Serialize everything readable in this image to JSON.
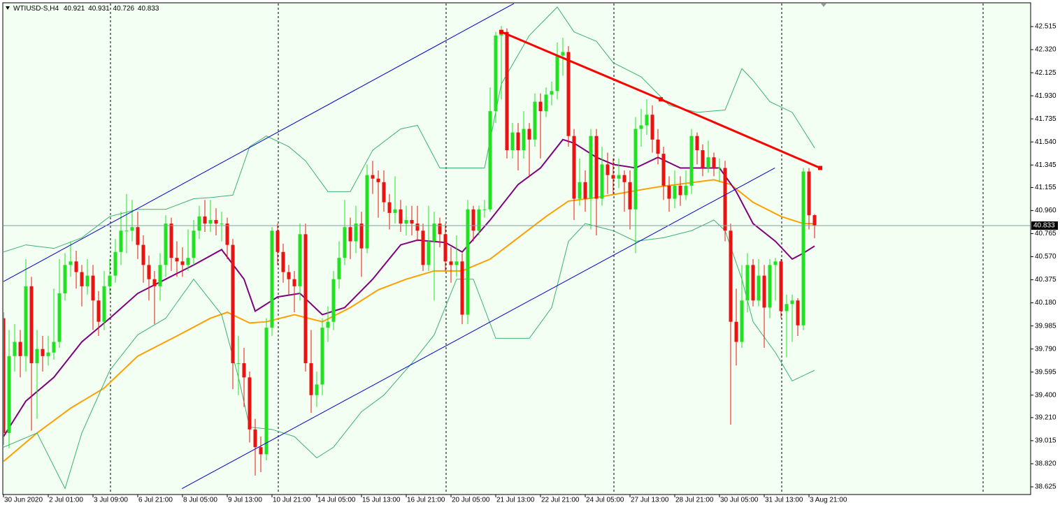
{
  "chart_data": {
    "type": "candlestick",
    "title": "WTIUSD-S,H4",
    "up_color": "#22e022",
    "down_color": "#ee1111",
    "categories": [
      "30 Jun 2020",
      null,
      null,
      null,
      null,
      null,
      null,
      null,
      "2 Jul 01:00",
      null,
      null,
      null,
      null,
      null,
      null,
      null,
      "3 Jul 09:00",
      null,
      null,
      null,
      null,
      null,
      null,
      null,
      "6 Jul 21:00",
      null,
      null,
      null,
      null,
      null,
      null,
      null,
      "8 Jul 05:00",
      null,
      null,
      null,
      null,
      null,
      null,
      null,
      "9 Jul 13:00",
      null,
      null,
      null,
      null,
      null,
      null,
      null,
      "10 Jul 21:00",
      null,
      null,
      null,
      null,
      null,
      null,
      null,
      "14 Jul 05:00",
      null,
      null,
      null,
      null,
      null,
      null,
      null,
      "15 Jul 13:00",
      null,
      null,
      null,
      null,
      null,
      null,
      null,
      "16 Jul 21:00",
      null,
      null,
      null,
      null,
      null,
      null,
      null,
      "20 Jul 05:00",
      null,
      null,
      null,
      null,
      null,
      null,
      null,
      "21 Jul 13:00",
      null,
      null,
      null,
      null,
      null,
      null,
      null,
      "22 Jul 21:00",
      null,
      null,
      null,
      null,
      null,
      null,
      null,
      "24 Jul 05:00",
      null,
      null,
      null,
      null,
      null,
      null,
      null,
      "27 Jul 13:00",
      null,
      null,
      null,
      null,
      null,
      null,
      null,
      "28 Jul 21:00",
      null,
      null,
      null,
      null,
      null,
      null,
      null,
      "30 Jul 05:00",
      null,
      null,
      null,
      null,
      null,
      null,
      null,
      "31 Jul 13:00",
      null,
      null,
      null,
      null,
      null,
      null,
      null,
      "3 Aug 21:00",
      null
    ],
    "open": [
      40.05,
      39.08,
      39.73,
      39.85,
      39.73,
      40.32,
      39.67,
      39.79,
      39.73,
      39.76,
      39.85,
      40.26,
      40.5,
      40.53,
      40.44,
      40.32,
      40.41,
      40.2,
      40.02,
      40.32,
      40.41,
      40.61,
      40.79,
      40.79,
      40.82,
      40.67,
      40.5,
      40.38,
      40.32,
      40.5,
      40.85,
      40.56,
      40.53,
      40.5,
      40.56,
      40.79,
      40.91,
      40.85,
      40.88,
      40.85,
      40.85,
      40.67,
      39.67,
      39.67,
      39.55,
      39.11,
      38.96,
      38.9,
      39.97,
      40.79,
      40.61,
      40.44,
      40.38,
      40.32,
      40.76,
      39.67,
      39.4,
      39.49,
      39.97,
      40.02,
      40.38,
      40.56,
      40.82,
      40.7,
      40.85,
      40.64,
      41.26,
      41.23,
      41.2,
      41.03,
      40.94,
      40.97,
      40.85,
      40.88,
      40.85,
      40.79,
      40.5,
      40.7,
      40.85,
      40.76,
      40.53,
      40.5,
      40.53,
      40.08,
      40.97,
      40.79,
      40.97,
      40.97,
      41.8,
      42.44,
      42.47,
      41.47,
      41.62,
      41.47,
      41.65,
      41.56,
      41.88,
      41.8,
      41.94,
      41.97,
      42.27,
      42.3,
      41.59,
      41.06,
      41.2,
      41.06,
      41.59,
      41.06,
      41.35,
      41.26,
      41.23,
      41.26,
      41.2,
      40.97,
      41.65,
      41.68,
      41.77,
      41.56,
      41.44,
      41.17,
      41.06,
      41.17,
      41.09,
      41.17,
      41.59,
      41.47,
      41.32,
      41.41,
      41.32,
      41.32,
      40.79,
      40.02,
      39.85,
      40.2,
      40.5,
      40.2,
      40.41,
      40.14,
      40.5,
      40.53,
      40.11,
      40.17,
      40.2,
      39.99,
      41.29,
      40.921
    ],
    "high": [
      40.1,
      39.95,
      40.0,
      39.95,
      40.55,
      40.4,
      39.95,
      39.9,
      39.9,
      40.3,
      40.55,
      40.6,
      40.7,
      40.62,
      40.5,
      40.55,
      40.5,
      40.28,
      40.45,
      40.55,
      40.72,
      40.95,
      41.1,
      41.05,
      40.95,
      40.75,
      40.58,
      40.45,
      40.6,
      40.92,
      40.9,
      40.7,
      40.65,
      40.8,
      40.88,
      41.0,
      41.05,
      41.05,
      40.98,
      40.95,
      40.9,
      40.72,
      39.9,
      39.8,
      39.6,
      39.2,
      39.05,
      40.05,
      40.82,
      40.85,
      40.68,
      40.5,
      40.45,
      40.85,
      40.85,
      39.95,
      39.6,
      40.05,
      40.15,
      40.45,
      40.7,
      41.05,
      40.9,
      41.0,
      40.95,
      41.35,
      41.38,
      41.3,
      41.3,
      41.1,
      41.25,
      41.05,
      41.0,
      41.0,
      41.0,
      40.85,
      41.0,
      40.95,
      40.9,
      40.85,
      40.65,
      40.75,
      40.6,
      41.05,
      41.0,
      41.0,
      41.05,
      42.0,
      42.47,
      42.52,
      42.5,
      41.7,
      41.7,
      41.8,
      41.7,
      41.95,
      41.95,
      42.0,
      42.05,
      42.38,
      42.42,
      42.35,
      41.65,
      41.4,
      41.3,
      41.65,
      41.65,
      41.5,
      41.45,
      41.4,
      41.4,
      41.3,
      41.3,
      41.75,
      41.82,
      41.9,
      41.85,
      41.65,
      41.5,
      41.25,
      41.3,
      41.25,
      41.3,
      41.65,
      41.62,
      41.52,
      41.55,
      41.45,
      41.4,
      41.38,
      40.85,
      40.3,
      40.5,
      40.6,
      40.55,
      40.55,
      40.5,
      40.55,
      40.56,
      40.55,
      40.25,
      40.25,
      40.22,
      41.32,
      41.32,
      40.931
    ],
    "low": [
      38.98,
      38.95,
      39.6,
      39.55,
      39.6,
      39.1,
      39.2,
      39.6,
      39.65,
      39.7,
      39.8,
      40.2,
      40.4,
      40.3,
      40.15,
      40.25,
      39.95,
      39.9,
      39.95,
      40.25,
      40.35,
      40.5,
      40.6,
      40.7,
      40.55,
      40.35,
      40.2,
      40.0,
      40.2,
      40.4,
      40.45,
      40.4,
      40.4,
      40.45,
      40.5,
      40.72,
      40.78,
      40.78,
      40.75,
      40.7,
      40.55,
      39.45,
      39.4,
      39.3,
      39.0,
      38.72,
      38.75,
      38.85,
      39.9,
      40.5,
      40.35,
      40.25,
      40.1,
      40.2,
      39.6,
      39.25,
      39.3,
      39.4,
      39.85,
      39.95,
      40.3,
      40.5,
      40.55,
      40.6,
      40.4,
      40.6,
      41.1,
      40.9,
      40.95,
      40.8,
      40.85,
      40.78,
      40.75,
      40.75,
      40.7,
      40.45,
      40.45,
      40.2,
      40.65,
      40.45,
      40.35,
      40.4,
      40.0,
      40.0,
      40.7,
      40.75,
      40.9,
      40.95,
      41.7,
      41.9,
      41.4,
      41.4,
      41.3,
      41.4,
      41.25,
      41.5,
      41.4,
      41.75,
      41.85,
      41.9,
      42.1,
      41.5,
      40.88,
      41.0,
      40.95,
      40.8,
      40.75,
      41.0,
      41.1,
      41.1,
      41.15,
      40.95,
      40.8,
      40.6,
      41.5,
      41.6,
      41.45,
      41.35,
      41.05,
      40.95,
      40.98,
      41.0,
      41.05,
      41.1,
      41.35,
      41.25,
      41.28,
      41.25,
      41.2,
      40.7,
      39.15,
      39.65,
      39.8,
      40.1,
      40.15,
      40.15,
      39.8,
      40.05,
      40.2,
      40.05,
      39.72,
      39.85,
      39.9,
      39.95,
      40.8,
      40.726
    ],
    "close": [
      39.08,
      39.73,
      39.85,
      39.73,
      40.32,
      39.67,
      39.79,
      39.73,
      39.76,
      39.85,
      40.26,
      40.5,
      40.53,
      40.44,
      40.32,
      40.41,
      40.2,
      40.02,
      40.32,
      40.41,
      40.61,
      40.79,
      40.79,
      40.82,
      40.67,
      40.5,
      40.38,
      40.32,
      40.5,
      40.85,
      40.56,
      40.53,
      40.5,
      40.56,
      40.79,
      40.91,
      40.85,
      40.88,
      40.85,
      40.85,
      40.67,
      39.67,
      39.67,
      39.55,
      39.11,
      38.96,
      38.9,
      39.97,
      40.79,
      40.61,
      40.44,
      40.38,
      40.32,
      40.76,
      39.67,
      39.4,
      39.49,
      39.97,
      40.02,
      40.38,
      40.56,
      40.82,
      40.7,
      40.85,
      40.64,
      41.26,
      41.23,
      41.2,
      41.03,
      40.94,
      40.97,
      40.85,
      40.88,
      40.85,
      40.79,
      40.5,
      40.7,
      40.85,
      40.76,
      40.53,
      40.5,
      40.53,
      40.08,
      40.97,
      40.79,
      40.97,
      40.97,
      41.8,
      42.44,
      42.47,
      41.47,
      41.62,
      41.47,
      41.65,
      41.56,
      41.88,
      41.8,
      41.94,
      41.97,
      42.27,
      42.3,
      41.59,
      41.06,
      41.2,
      41.06,
      41.59,
      41.06,
      41.35,
      41.26,
      41.23,
      41.26,
      41.2,
      40.97,
      41.65,
      41.68,
      41.77,
      41.56,
      41.44,
      41.17,
      41.06,
      41.17,
      41.09,
      41.17,
      41.59,
      41.47,
      41.32,
      41.41,
      41.32,
      41.32,
      40.79,
      40.02,
      39.85,
      40.2,
      40.5,
      40.2,
      40.41,
      40.14,
      40.5,
      40.53,
      40.11,
      40.17,
      40.2,
      39.99,
      41.29,
      40.92,
      40.833
    ],
    "ylim": [
      38.56,
      42.716
    ],
    "yticks": [
      42.515,
      {
        "value": 42.32,
        "label": "42.320"
      },
      42.125,
      {
        "value": 41.93,
        "label": "41.930"
      },
      41.735,
      {
        "value": 41.54,
        "label": "41.540"
      },
      41.345,
      41.155,
      {
        "value": 40.96,
        "label": "40.960"
      },
      40.765,
      {
        "value": 40.57,
        "label": "40.570"
      },
      40.375,
      {
        "value": 40.18,
        "label": "40.180"
      },
      39.985,
      {
        "value": 39.79,
        "label": "39.790"
      },
      39.595,
      {
        "value": 39.4,
        "label": "39.400"
      },
      {
        "value": 39.21,
        "label": "39.210"
      },
      39.015,
      {
        "value": 38.82,
        "label": "38.820"
      },
      38.625
    ],
    "overlays": [
      {
        "color": "#ffa000",
        "x": [
          0,
          6,
          12,
          18,
          24,
          31,
          37,
          40,
          44,
          47,
          52,
          57,
          62,
          67,
          72,
          77,
          82,
          87,
          92,
          97,
          101,
          106,
          112,
          117,
          122,
          127,
          130,
          134,
          139,
          143,
          145
        ],
        "values": [
          38.84,
          39.08,
          39.29,
          39.46,
          39.73,
          39.9,
          40.05,
          40.1,
          40.01,
          40.02,
          40.08,
          40.02,
          40.14,
          40.29,
          40.38,
          40.45,
          40.45,
          40.55,
          40.73,
          40.91,
          41.04,
          41.07,
          41.12,
          41.16,
          41.19,
          41.22,
          41.18,
          41.03,
          40.91,
          40.85,
          40.85
        ]
      },
      {
        "color": "#800080",
        "x": [
          0,
          4,
          9,
          14,
          19,
          24,
          29,
          34,
          39,
          43,
          45,
          49,
          53,
          57,
          61,
          66,
          71,
          74,
          79,
          82,
          87,
          92,
          96,
          100,
          102,
          106,
          109,
          113,
          117,
          121,
          125,
          128,
          131,
          134,
          138,
          141,
          143,
          145
        ],
        "values": [
          39.05,
          39.35,
          39.55,
          39.85,
          40.05,
          40.26,
          40.38,
          40.5,
          40.63,
          40.38,
          40.11,
          40.23,
          40.26,
          40.08,
          40.14,
          40.38,
          40.67,
          40.71,
          40.69,
          40.61,
          40.88,
          41.18,
          41.32,
          41.56,
          41.53,
          41.41,
          41.35,
          41.32,
          41.41,
          41.32,
          41.32,
          41.32,
          41.12,
          40.85,
          40.7,
          40.55,
          40.6,
          40.66
        ]
      },
      {
        "color": "#3cb371",
        "x": [
          0,
          4,
          9,
          14,
          19,
          24,
          29,
          34,
          37,
          41,
          44,
          47,
          51,
          54,
          58,
          62,
          66,
          71,
          74,
          78,
          82,
          86,
          89,
          94,
          99,
          102,
          106,
          109,
          114,
          119,
          124,
          129,
          132,
          134,
          137,
          141,
          145
        ],
        "values": [
          40.61,
          40.67,
          40.64,
          40.73,
          40.91,
          40.97,
          40.97,
          41.06,
          41.07,
          41.09,
          41.5,
          41.59,
          41.5,
          41.38,
          41.12,
          41.12,
          41.47,
          41.65,
          41.68,
          41.32,
          41.32,
          41.32,
          42.03,
          42.44,
          42.68,
          42.47,
          42.39,
          42.21,
          42.09,
          41.85,
          41.79,
          41.81,
          42.16,
          42.06,
          41.88,
          41.79,
          41.49
        ]
      },
      {
        "color": "#3cb371",
        "x": [
          0,
          6,
          11,
          14,
          19,
          24,
          29,
          34,
          39,
          42,
          44,
          48,
          52,
          56,
          59,
          64,
          68,
          73,
          77,
          81,
          84,
          88,
          94,
          98,
          101,
          104,
          109,
          113,
          118,
          123,
          127,
          129,
          132,
          134,
          138,
          141,
          145
        ],
        "values": [
          38.96,
          39.08,
          38.61,
          39.08,
          39.61,
          39.91,
          40.05,
          40.38,
          40.08,
          39.55,
          39.13,
          39.11,
          39.05,
          38.87,
          38.96,
          39.26,
          39.4,
          39.67,
          39.91,
          40.38,
          40.38,
          39.88,
          39.88,
          40.14,
          40.7,
          40.85,
          40.79,
          40.7,
          40.73,
          40.79,
          40.88,
          40.79,
          40.38,
          40.02,
          39.76,
          39.52,
          39.61
        ]
      }
    ],
    "trendlines": [
      {
        "color": "#0000cc",
        "x": [
          0,
          91.25
        ],
        "values": [
          40.36,
          42.71
        ]
      },
      {
        "color": "#0000cc",
        "x": [
          31.9,
          137.9
        ],
        "values": [
          38.61,
          41.32
        ]
      },
      {
        "color": "#ff0000",
        "markers": true,
        "x": [
          89,
          117.5,
          146
        ],
        "values": [
          42.47,
          41.9,
          41.32
        ]
      }
    ],
    "price_line_color": "#7fa0a0"
  }
}
